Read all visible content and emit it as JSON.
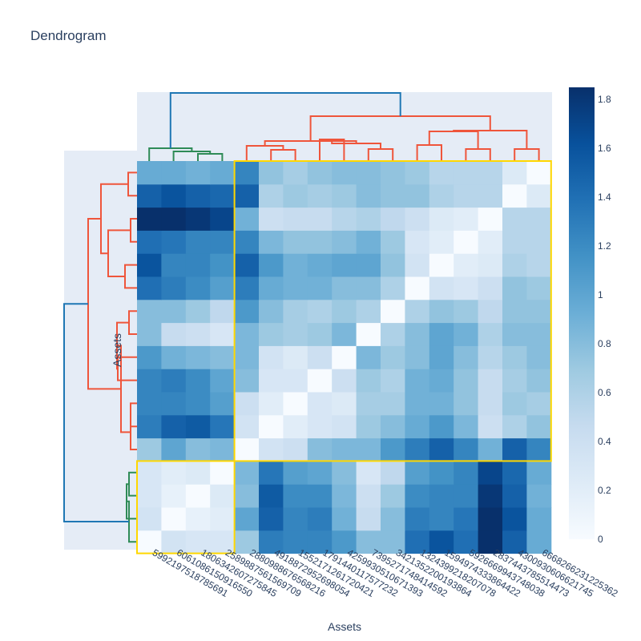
{
  "chart_data": {
    "type": "heatmap",
    "title": "Dendrogram",
    "xlabel": "Assets",
    "ylabel": "Assets",
    "x_labels": [
      "5992197518785691",
      "6061086150916550",
      "1806342607275845",
      "2589887561569709",
      "2880988676568216",
      "4918872952698054",
      "1552171261720421",
      "1791440117577232",
      "4259930510671393",
      "7395271748414592",
      "3421352200193864",
      "1324399218207078",
      "1594974333864422",
      "5926669943748038",
      "2837443785514473",
      "4300930606621745",
      "6668266231225362"
    ],
    "colorscale": [
      "#f7fbff",
      "#deebf7",
      "#c6dbef",
      "#9ecae1",
      "#6baed6",
      "#4292c6",
      "#2171b5",
      "#08519c",
      "#08306b"
    ],
    "zlim": [
      0,
      1.85
    ],
    "colorbar_ticks": [
      0,
      0.2,
      0.4,
      0.6,
      0.8,
      1,
      1.2,
      1.4,
      1.6,
      1.8
    ],
    "clusters": [
      {
        "rows": [
          0,
          3
        ],
        "cols": [
          0,
          3
        ],
        "color": "#2e8b57"
      },
      {
        "rows": [
          4,
          16
        ],
        "cols": [
          4,
          16
        ],
        "color": "#ef553b"
      }
    ],
    "highlight_color": "#ffd700",
    "top_link_color": "#1f77b4",
    "matrix": [
      [
        0.0,
        0.35,
        0.3,
        0.3,
        0.7,
        1.3,
        1.25,
        1.25,
        1.1,
        0.8,
        0.8,
        1.4,
        1.6,
        1.4,
        1.85,
        1.5,
        0.95
      ],
      [
        0.35,
        0.0,
        0.15,
        0.2,
        1.0,
        1.5,
        1.25,
        1.3,
        0.9,
        0.45,
        0.8,
        1.3,
        1.25,
        1.35,
        1.85,
        1.6,
        0.95
      ],
      [
        0.3,
        0.15,
        0.0,
        0.25,
        0.8,
        1.55,
        1.2,
        1.2,
        0.85,
        0.4,
        0.7,
        1.2,
        1.25,
        1.25,
        1.8,
        1.5,
        0.9
      ],
      [
        0.3,
        0.2,
        0.25,
        0.0,
        0.85,
        1.35,
        1.05,
        1.0,
        0.8,
        0.3,
        0.5,
        1.05,
        1.15,
        1.25,
        1.7,
        1.45,
        0.95
      ],
      [
        0.7,
        1.0,
        0.8,
        0.85,
        0.0,
        0.35,
        0.4,
        0.8,
        0.85,
        0.85,
        1.1,
        1.3,
        1.5,
        1.25,
        0.9,
        1.5,
        1.25
      ],
      [
        1.3,
        1.5,
        1.55,
        1.35,
        0.35,
        0.0,
        0.2,
        0.3,
        0.35,
        0.7,
        0.8,
        0.95,
        1.1,
        0.85,
        0.4,
        0.6,
        0.75
      ],
      [
        1.25,
        1.25,
        1.2,
        1.05,
        0.4,
        0.2,
        0.0,
        0.3,
        0.25,
        0.65,
        0.65,
        0.9,
        0.9,
        0.75,
        0.45,
        0.7,
        0.65
      ],
      [
        1.25,
        1.3,
        1.2,
        1.0,
        0.8,
        0.3,
        0.3,
        0.0,
        0.4,
        0.7,
        0.6,
        0.9,
        0.95,
        0.75,
        0.45,
        0.65,
        0.75
      ],
      [
        1.1,
        0.9,
        0.85,
        0.8,
        0.85,
        0.35,
        0.25,
        0.4,
        0.0,
        0.85,
        0.7,
        0.8,
        1.0,
        0.8,
        0.55,
        0.7,
        0.8
      ],
      [
        0.8,
        0.45,
        0.4,
        0.3,
        0.85,
        0.7,
        0.65,
        0.7,
        0.85,
        0.0,
        0.6,
        0.8,
        1.0,
        0.9,
        0.6,
        0.8,
        0.8
      ],
      [
        0.8,
        0.8,
        0.7,
        0.5,
        1.1,
        0.8,
        0.65,
        0.6,
        0.7,
        0.6,
        0.0,
        0.6,
        0.75,
        0.7,
        0.5,
        0.75,
        0.75
      ],
      [
        1.4,
        1.3,
        1.2,
        1.05,
        1.3,
        0.95,
        0.9,
        0.9,
        0.8,
        0.8,
        0.6,
        0.0,
        0.35,
        0.3,
        0.4,
        0.75,
        0.7
      ],
      [
        1.6,
        1.25,
        1.25,
        1.15,
        1.5,
        1.1,
        0.9,
        0.95,
        1.0,
        1.0,
        0.75,
        0.35,
        0.0,
        0.2,
        0.25,
        0.6,
        0.55
      ],
      [
        1.4,
        1.35,
        1.25,
        1.25,
        1.25,
        0.85,
        0.75,
        0.75,
        0.8,
        0.9,
        0.7,
        0.3,
        0.2,
        0.0,
        0.2,
        0.55,
        0.55
      ],
      [
        1.85,
        1.85,
        1.8,
        1.7,
        0.9,
        0.4,
        0.45,
        0.45,
        0.55,
        0.6,
        0.5,
        0.4,
        0.25,
        0.2,
        0.0,
        0.55,
        0.55
      ],
      [
        1.5,
        1.6,
        1.5,
        1.45,
        1.5,
        0.6,
        0.7,
        0.65,
        0.7,
        0.8,
        0.75,
        0.75,
        0.6,
        0.55,
        0.55,
        0.0,
        0.25
      ],
      [
        0.95,
        0.95,
        0.9,
        0.95,
        1.25,
        0.75,
        0.65,
        0.75,
        0.8,
        0.8,
        0.75,
        0.7,
        0.55,
        0.55,
        0.55,
        0.25,
        0.0
      ]
    ]
  }
}
